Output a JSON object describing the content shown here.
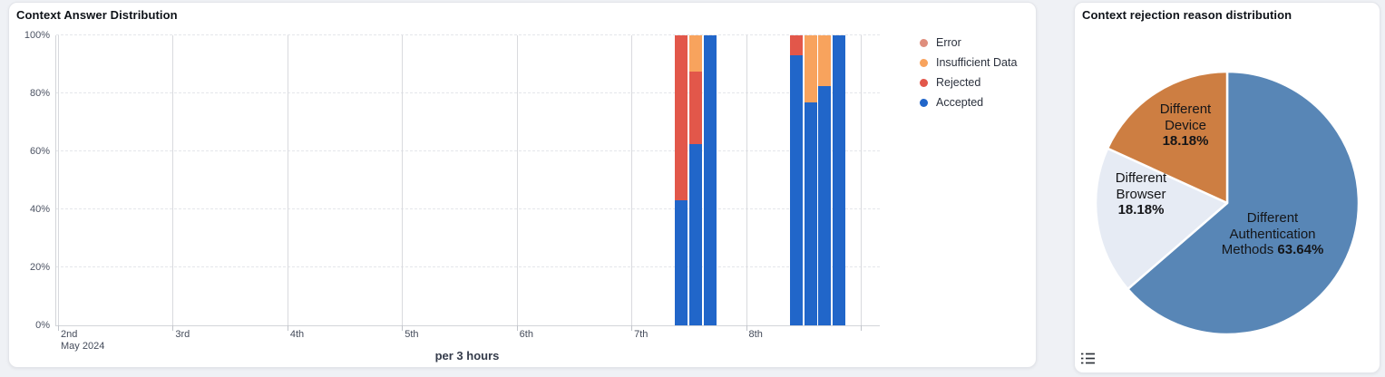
{
  "chart_data": [
    {
      "type": "bar",
      "stacked": "percent",
      "title": "Context Answer Distribution",
      "xlabel": "per 3 hours",
      "x_days": [
        "2nd",
        "3rd",
        "4th",
        "5th",
        "6th",
        "7th",
        "8th"
      ],
      "x_start_sub": "May 2024",
      "y_ticks": [
        "0%",
        "20%",
        "40%",
        "60%",
        "80%",
        "100%"
      ],
      "ylim": [
        0,
        100
      ],
      "grid": true,
      "legend_position": "right",
      "slots_per_day": 8,
      "series_colors": {
        "Error": "#df8e7d",
        "Insufficient Data": "#f8a35d",
        "Rejected": "#e2574a",
        "Accepted": "#2166c9"
      },
      "legend_order": [
        "Error",
        "Insufficient Data",
        "Rejected",
        "Accepted"
      ],
      "bars": [
        {
          "day": "7th",
          "slot_of_day": 3,
          "stack": [
            {
              "name": "Accepted",
              "pct": 43
            },
            {
              "name": "Rejected",
              "pct": 57
            }
          ]
        },
        {
          "day": "7th",
          "slot_of_day": 4,
          "stack": [
            {
              "name": "Accepted",
              "pct": 62.5
            },
            {
              "name": "Rejected",
              "pct": 25
            },
            {
              "name": "Insufficient Data",
              "pct": 12.5
            }
          ]
        },
        {
          "day": "7th",
          "slot_of_day": 5,
          "stack": [
            {
              "name": "Accepted",
              "pct": 100
            }
          ]
        },
        {
          "day": "8th",
          "slot_of_day": 3,
          "stack": [
            {
              "name": "Accepted",
              "pct": 93
            },
            {
              "name": "Rejected",
              "pct": 7
            }
          ]
        },
        {
          "day": "8th",
          "slot_of_day": 4,
          "stack": [
            {
              "name": "Accepted",
              "pct": 77
            },
            {
              "name": "Insufficient Data",
              "pct": 23
            }
          ]
        },
        {
          "day": "8th",
          "slot_of_day": 5,
          "stack": [
            {
              "name": "Accepted",
              "pct": 82.5
            },
            {
              "name": "Insufficient Data",
              "pct": 17.5
            }
          ]
        },
        {
          "day": "8th",
          "slot_of_day": 6,
          "stack": [
            {
              "name": "Accepted",
              "pct": 100
            }
          ]
        }
      ]
    },
    {
      "type": "pie",
      "title": "Context rejection reason distribution",
      "start": "top",
      "direction": "clockwise",
      "slices": [
        {
          "name": "Different Authentication Methods",
          "pct": 63.64,
          "pct_label": "63.64%",
          "color": "#5886b6",
          "label_lines": [
            "Different",
            "Authentication",
            "Methods"
          ]
        },
        {
          "name": "Different Browser",
          "pct": 18.18,
          "pct_label": "18.18%",
          "color": "#e6ebf4",
          "label_lines": [
            "Different",
            "Browser"
          ]
        },
        {
          "name": "Different Device",
          "pct": 18.18,
          "pct_label": "18.18%",
          "color": "#cd7e42",
          "label_lines": [
            "Different",
            "Device"
          ]
        }
      ]
    }
  ]
}
